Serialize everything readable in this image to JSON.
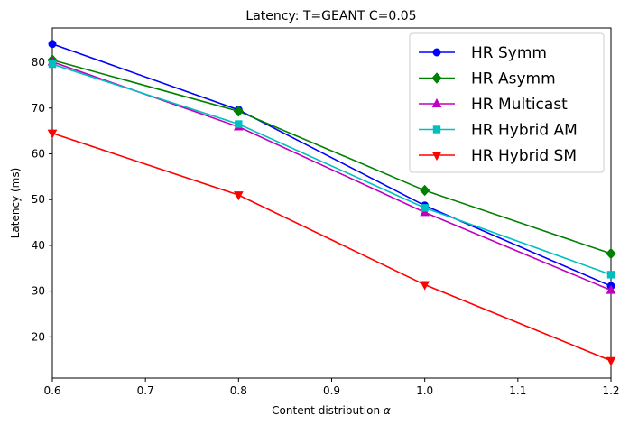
{
  "chart_data": {
    "type": "line",
    "title": "Latency: T=GEANT C=0.05",
    "xlabel": "Content distribution",
    "xlabel_symbol": "α",
    "ylabel": "Latency (ms)",
    "xlim": [
      0.6,
      1.2
    ],
    "ylim": [
      11,
      87.5
    ],
    "xticks": [
      "0.6",
      "0.7",
      "0.8",
      "0.9",
      "1.0",
      "1.1",
      "1.2"
    ],
    "yticks": [
      "20",
      "30",
      "40",
      "50",
      "60",
      "70",
      "80"
    ],
    "grid": false,
    "legend_position": "top-right",
    "x": [
      0.6,
      0.8,
      1.0,
      1.2
    ],
    "series": [
      {
        "name": "HR Symm",
        "color": "#0000ff",
        "marker": "circle",
        "values": [
          84,
          69.6,
          48.7,
          31.1
        ]
      },
      {
        "name": "HR Asymm",
        "color": "#008000",
        "marker": "diamond",
        "values": [
          80.5,
          69.3,
          52,
          38.2
        ]
      },
      {
        "name": "HR Multicast",
        "color": "#bf00bf",
        "marker": "triangle-up",
        "values": [
          80.1,
          65.9,
          47.2,
          30.2
        ]
      },
      {
        "name": "HR Hybrid AM",
        "color": "#00bfbf",
        "marker": "square",
        "values": [
          79.6,
          66.5,
          48.2,
          33.6
        ]
      },
      {
        "name": "HR Hybrid SM",
        "color": "#ff0000",
        "marker": "triangle-down",
        "values": [
          64.5,
          51,
          31.4,
          14.8
        ]
      }
    ]
  }
}
